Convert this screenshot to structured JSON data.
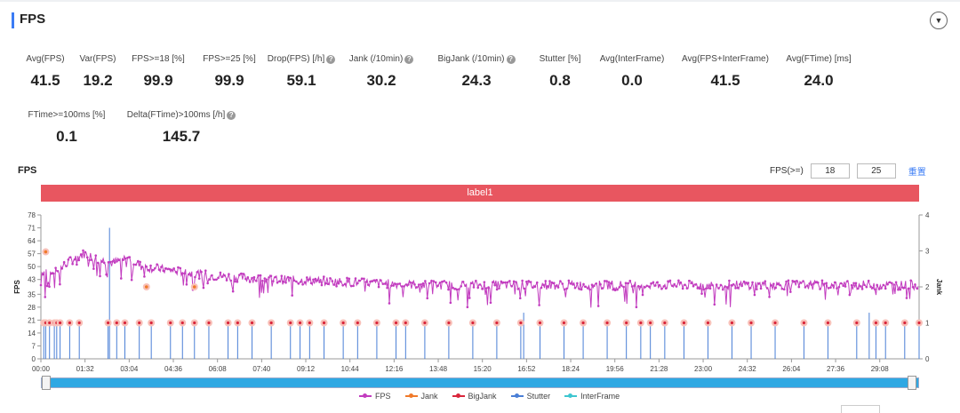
{
  "panel": {
    "title": "FPS",
    "collapse_icon": "chevron-down-icon"
  },
  "metrics": [
    {
      "label": "Avg(FPS)",
      "value": "41.5",
      "help": false
    },
    {
      "label": "Var(FPS)",
      "value": "19.2",
      "help": false
    },
    {
      "label": "FPS>=18 [%]",
      "value": "99.9",
      "help": false
    },
    {
      "label": "FPS>=25 [%]",
      "value": "99.9",
      "help": false
    },
    {
      "label": "Drop(FPS) [/h]",
      "value": "59.1",
      "help": true
    },
    {
      "label": "Jank (/10min)",
      "value": "30.2",
      "help": true
    },
    {
      "label": "BigJank (/10min)",
      "value": "24.3",
      "help": true
    },
    {
      "label": "Stutter [%]",
      "value": "0.8",
      "help": false
    },
    {
      "label": "Avg(InterFrame)",
      "value": "0.0",
      "help": false
    },
    {
      "label": "Avg(FPS+InterFrame)",
      "value": "41.5",
      "help": false
    },
    {
      "label": "Avg(FTime) [ms]",
      "value": "24.0",
      "help": false
    },
    {
      "label": "FTime>=100ms [%]",
      "value": "0.1",
      "help": false
    },
    {
      "label": "Delta(FTime)>100ms [/h]",
      "value": "145.7",
      "help": true
    }
  ],
  "chart_header": {
    "title": "FPS",
    "filter_label": "FPS(>=)",
    "filter_value_1": "18",
    "filter_value_2": "25",
    "reset_label": "重置"
  },
  "band_label": "label1",
  "chart_data": {
    "type": "line",
    "x_ticks": [
      "00:00",
      "01:32",
      "03:04",
      "04:36",
      "06:08",
      "07:40",
      "09:12",
      "10:44",
      "12:16",
      "13:48",
      "15:20",
      "16:52",
      "18:24",
      "19:56",
      "21:28",
      "23:00",
      "24:32",
      "26:04",
      "27:36",
      "29:08"
    ],
    "xlim_seconds": [
      0,
      1830
    ],
    "ylabel": "FPS",
    "ylabel_right": "Jank",
    "yticks_left": [
      0,
      7,
      14,
      21,
      28,
      35,
      43,
      50,
      57,
      64,
      71,
      78
    ],
    "ylim": [
      0,
      78
    ],
    "yticks_right": [
      0,
      1,
      2,
      3,
      4
    ],
    "ylim_right": [
      0,
      4
    ],
    "fps_profile": [
      {
        "t": 0,
        "fps": 48
      },
      {
        "t": 30,
        "fps": 47
      },
      {
        "t": 60,
        "fps": 53
      },
      {
        "t": 90,
        "fps": 57
      },
      {
        "t": 120,
        "fps": 54
      },
      {
        "t": 150,
        "fps": 52
      },
      {
        "t": 180,
        "fps": 55
      },
      {
        "t": 210,
        "fps": 50
      },
      {
        "t": 240,
        "fps": 49
      },
      {
        "t": 300,
        "fps": 47
      },
      {
        "t": 360,
        "fps": 45
      },
      {
        "t": 420,
        "fps": 44
      },
      {
        "t": 480,
        "fps": 43
      },
      {
        "t": 600,
        "fps": 42
      },
      {
        "t": 700,
        "fps": 41
      },
      {
        "t": 800,
        "fps": 40
      },
      {
        "t": 1000,
        "fps": 40
      },
      {
        "t": 1400,
        "fps": 40
      },
      {
        "t": 1830,
        "fps": 40
      }
    ],
    "stutter_spikes_seconds": [
      6,
      10,
      18,
      28,
      33,
      40,
      60,
      80,
      140,
      158,
      175,
      205,
      230,
      270,
      295,
      320,
      350,
      390,
      410,
      440,
      480,
      520,
      540,
      560,
      590,
      630,
      660,
      700,
      740,
      760,
      800,
      850,
      900,
      950,
      1000,
      1040,
      1090,
      1130,
      1180,
      1220,
      1250,
      1270,
      1300,
      1340,
      1390,
      1440,
      1480,
      1530,
      1590,
      1640,
      1700,
      1740,
      1760,
      1800,
      1830
    ],
    "tall_stutter_seconds": [
      143,
      1006,
      1726
    ],
    "tall_stutter_fps": [
      71,
      25,
      25
    ],
    "jank_markers": [
      {
        "t": 10,
        "fps": 58
      },
      {
        "t": 220,
        "fps": 39
      },
      {
        "t": 320,
        "fps": 39
      }
    ],
    "legend": [
      {
        "name": "FPS",
        "color": "#c23cbf"
      },
      {
        "name": "Jank",
        "color": "#f07a2a"
      },
      {
        "name": "BigJank",
        "color": "#d9263b"
      },
      {
        "name": "Stutter",
        "color": "#4a7fd6"
      },
      {
        "name": "InterFrame",
        "color": "#3ec6d0"
      }
    ]
  }
}
